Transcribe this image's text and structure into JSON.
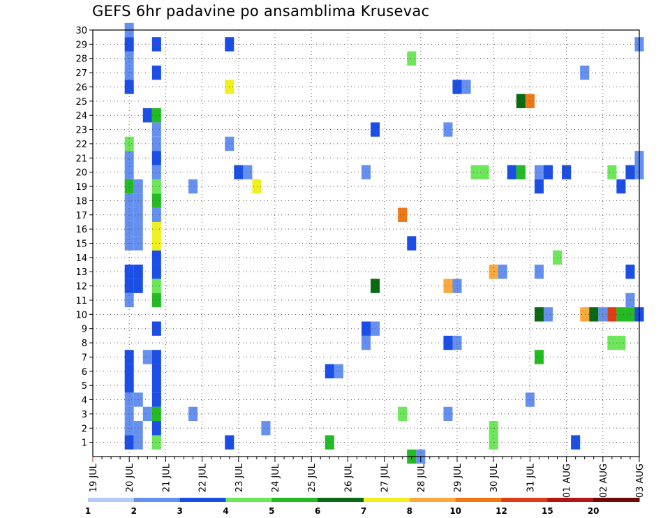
{
  "chart_data": {
    "type": "heatmap",
    "title": "GEFS 6hr padavine po ansamblima Krusevac",
    "xlabel": "",
    "ylabel": "",
    "x_tick_labels": [
      "19 JUL",
      "20 JUL",
      "21 JUL",
      "22 JUL",
      "23 JUL",
      "24 JUL",
      "25 JUL",
      "26 JUL",
      "27 JUL",
      "28 JUL",
      "29 JUL",
      "30 JUL",
      "31 JUL",
      "01 AUG",
      "02 AUG",
      "03 AUG"
    ],
    "y_tick_labels": [
      "1",
      "2",
      "3",
      "4",
      "5",
      "6",
      "7",
      "8",
      "9",
      "10",
      "11",
      "12",
      "13",
      "14",
      "15",
      "16",
      "17",
      "18",
      "19",
      "20",
      "21",
      "22",
      "23",
      "24",
      "25",
      "26",
      "27",
      "28",
      "29",
      "30"
    ],
    "xlim": [
      0,
      60
    ],
    "ylim": [
      0,
      30
    ],
    "grid": true,
    "colorbar": {
      "labels": [
        "1",
        "2",
        "3",
        "4",
        "5",
        "6",
        "7",
        "8",
        "10",
        "12",
        "15",
        "20"
      ],
      "colors": [
        "#b4c8fa",
        "#6690f0",
        "#1a4ee6",
        "#6ee65a",
        "#22bb22",
        "#0a6a14",
        "#f0f01e",
        "#faaa3c",
        "#f07814",
        "#e03c14",
        "#b41414",
        "#6e0a0a"
      ]
    },
    "cells": [
      [
        4,
        1,
        2
      ],
      [
        4,
        2,
        1
      ],
      [
        4,
        3,
        1
      ],
      [
        4,
        4,
        1
      ],
      [
        4,
        5,
        2
      ],
      [
        4,
        6,
        2
      ],
      [
        4,
        7,
        2
      ],
      [
        4,
        11,
        1
      ],
      [
        4,
        12,
        2
      ],
      [
        4,
        13,
        2
      ],
      [
        4,
        15,
        1
      ],
      [
        4,
        16,
        1
      ],
      [
        4,
        17,
        1
      ],
      [
        4,
        18,
        1
      ],
      [
        4,
        19,
        4
      ],
      [
        4,
        20,
        1
      ],
      [
        4,
        21,
        1
      ],
      [
        4,
        22,
        3
      ],
      [
        4,
        26,
        2
      ],
      [
        4,
        27,
        1
      ],
      [
        4,
        28,
        1
      ],
      [
        4,
        29,
        2
      ],
      [
        4,
        30,
        1
      ],
      [
        5,
        1,
        1
      ],
      [
        5,
        2,
        1
      ],
      [
        5,
        4,
        1
      ],
      [
        5,
        12,
        2
      ],
      [
        5,
        13,
        2
      ],
      [
        5,
        15,
        1
      ],
      [
        5,
        16,
        1
      ],
      [
        5,
        17,
        1
      ],
      [
        5,
        18,
        1
      ],
      [
        5,
        19,
        1
      ],
      [
        6,
        3,
        1
      ],
      [
        6,
        7,
        1
      ],
      [
        6,
        24,
        2
      ],
      [
        7,
        1,
        3
      ],
      [
        7,
        2,
        2
      ],
      [
        7,
        3,
        4
      ],
      [
        7,
        4,
        2
      ],
      [
        7,
        5,
        2
      ],
      [
        7,
        6,
        2
      ],
      [
        7,
        7,
        2
      ],
      [
        7,
        9,
        2
      ],
      [
        7,
        11,
        4
      ],
      [
        7,
        12,
        3
      ],
      [
        7,
        13,
        2
      ],
      [
        7,
        14,
        2
      ],
      [
        7,
        15,
        6
      ],
      [
        7,
        16,
        6
      ],
      [
        7,
        17,
        1
      ],
      [
        7,
        18,
        4
      ],
      [
        7,
        19,
        3
      ],
      [
        7,
        20,
        1
      ],
      [
        7,
        21,
        2
      ],
      [
        7,
        22,
        1
      ],
      [
        7,
        23,
        1
      ],
      [
        7,
        24,
        4
      ],
      [
        7,
        27,
        2
      ],
      [
        7,
        29,
        2
      ],
      [
        11,
        3,
        1
      ],
      [
        11,
        19,
        1
      ],
      [
        15,
        1,
        2
      ],
      [
        15,
        22,
        1
      ],
      [
        15,
        26,
        6
      ],
      [
        15,
        29,
        2
      ],
      [
        16,
        20,
        2
      ],
      [
        17,
        20,
        1
      ],
      [
        18,
        19,
        6
      ],
      [
        19,
        2,
        1
      ],
      [
        26,
        1,
        4
      ],
      [
        26,
        6,
        2
      ],
      [
        27,
        6,
        1
      ],
      [
        30,
        8,
        1
      ],
      [
        30,
        9,
        2
      ],
      [
        30,
        20,
        1
      ],
      [
        31,
        9,
        1
      ],
      [
        31,
        12,
        5
      ],
      [
        31,
        23,
        2
      ],
      [
        34,
        3,
        3
      ],
      [
        34,
        17,
        8
      ],
      [
        35,
        0,
        4
      ],
      [
        35,
        15,
        2
      ],
      [
        35,
        28,
        3
      ],
      [
        36,
        0,
        1
      ],
      [
        39,
        3,
        1
      ],
      [
        39,
        8,
        2
      ],
      [
        39,
        12,
        7
      ],
      [
        39,
        23,
        1
      ],
      [
        40,
        8,
        1
      ],
      [
        40,
        12,
        1
      ],
      [
        40,
        26,
        2
      ],
      [
        41,
        26,
        1
      ],
      [
        42,
        20,
        3
      ],
      [
        43,
        20,
        3
      ],
      [
        44,
        1,
        3
      ],
      [
        44,
        2,
        3
      ],
      [
        44,
        13,
        7
      ],
      [
        45,
        13,
        1
      ],
      [
        46,
        20,
        2
      ],
      [
        47,
        20,
        4
      ],
      [
        47,
        25,
        5
      ],
      [
        48,
        4,
        1
      ],
      [
        48,
        25,
        8
      ],
      [
        49,
        7,
        4
      ],
      [
        49,
        10,
        5
      ],
      [
        49,
        13,
        1
      ],
      [
        49,
        19,
        2
      ],
      [
        49,
        20,
        1
      ],
      [
        50,
        10,
        1
      ],
      [
        50,
        20,
        2
      ],
      [
        51,
        14,
        3
      ],
      [
        52,
        20,
        2
      ],
      [
        53,
        1,
        2
      ],
      [
        54,
        10,
        7
      ],
      [
        54,
        27,
        1
      ],
      [
        55,
        10,
        5
      ],
      [
        56,
        10,
        1
      ],
      [
        57,
        8,
        3
      ],
      [
        57,
        10,
        9
      ],
      [
        57,
        20,
        3
      ],
      [
        58,
        8,
        3
      ],
      [
        58,
        10,
        4
      ],
      [
        58,
        19,
        2
      ],
      [
        59,
        10,
        4
      ],
      [
        59,
        11,
        1
      ],
      [
        59,
        13,
        2
      ],
      [
        59,
        20,
        2
      ],
      [
        60,
        10,
        2
      ],
      [
        60,
        20,
        1
      ],
      [
        60,
        21,
        1
      ],
      [
        60,
        29,
        1
      ]
    ]
  }
}
